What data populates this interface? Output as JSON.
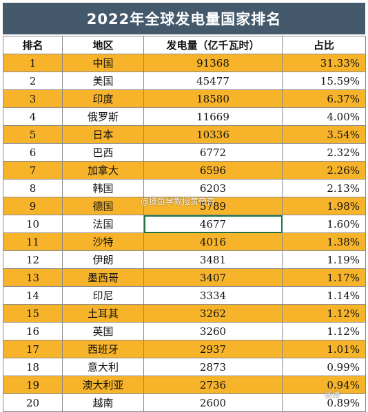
{
  "title": "2022年全球发电量国家排名",
  "columns": [
    "排名",
    "地区",
    "发电量（亿千瓦时）",
    "占比"
  ],
  "rows": [
    {
      "rank": "1",
      "region": "中国",
      "output": "91368",
      "share": "31.33%"
    },
    {
      "rank": "2",
      "region": "美国",
      "output": "45477",
      "share": "15.59%"
    },
    {
      "rank": "3",
      "region": "印度",
      "output": "18580",
      "share": "6.37%"
    },
    {
      "rank": "4",
      "region": "俄罗斯",
      "output": "11669",
      "share": "4.00%"
    },
    {
      "rank": "5",
      "region": "日本",
      "output": "10336",
      "share": "3.54%"
    },
    {
      "rank": "6",
      "region": "巴西",
      "output": "6772",
      "share": "2.32%"
    },
    {
      "rank": "7",
      "region": "加拿大",
      "output": "6596",
      "share": "2.26%"
    },
    {
      "rank": "8",
      "region": "韩国",
      "output": "6203",
      "share": "2.13%"
    },
    {
      "rank": "9",
      "region": "德国",
      "output": "5789",
      "share": "1.98%"
    },
    {
      "rank": "10",
      "region": "法国",
      "output": "4677",
      "share": "1.60%"
    },
    {
      "rank": "11",
      "region": "沙特",
      "output": "4016",
      "share": "1.38%"
    },
    {
      "rank": "12",
      "region": "伊朗",
      "output": "3481",
      "share": "1.19%"
    },
    {
      "rank": "13",
      "region": "墨西哥",
      "output": "3407",
      "share": "1.17%"
    },
    {
      "rank": "14",
      "region": "印尼",
      "output": "3334",
      "share": "1.14%"
    },
    {
      "rank": "15",
      "region": "土耳其",
      "output": "3262",
      "share": "1.12%"
    },
    {
      "rank": "16",
      "region": "英国",
      "output": "3260",
      "share": "1.12%"
    },
    {
      "rank": "17",
      "region": "西班牙",
      "output": "2937",
      "share": "1.01%"
    },
    {
      "rank": "18",
      "region": "意大利",
      "output": "2873",
      "share": "0.99%"
    },
    {
      "rank": "19",
      "region": "澳大利亚",
      "output": "2736",
      "share": "0.94%"
    },
    {
      "rank": "20",
      "region": "越南",
      "output": "2600",
      "share": "0.89%"
    }
  ],
  "watermark": "@摸鱼学教授黄帝奇",
  "corner_watermark": "微博",
  "colors": {
    "title_bg": "#445a6c",
    "highlight_row": "#f7b42a",
    "plain_row": "#ffffff",
    "grid": "#8a8a8a"
  }
}
